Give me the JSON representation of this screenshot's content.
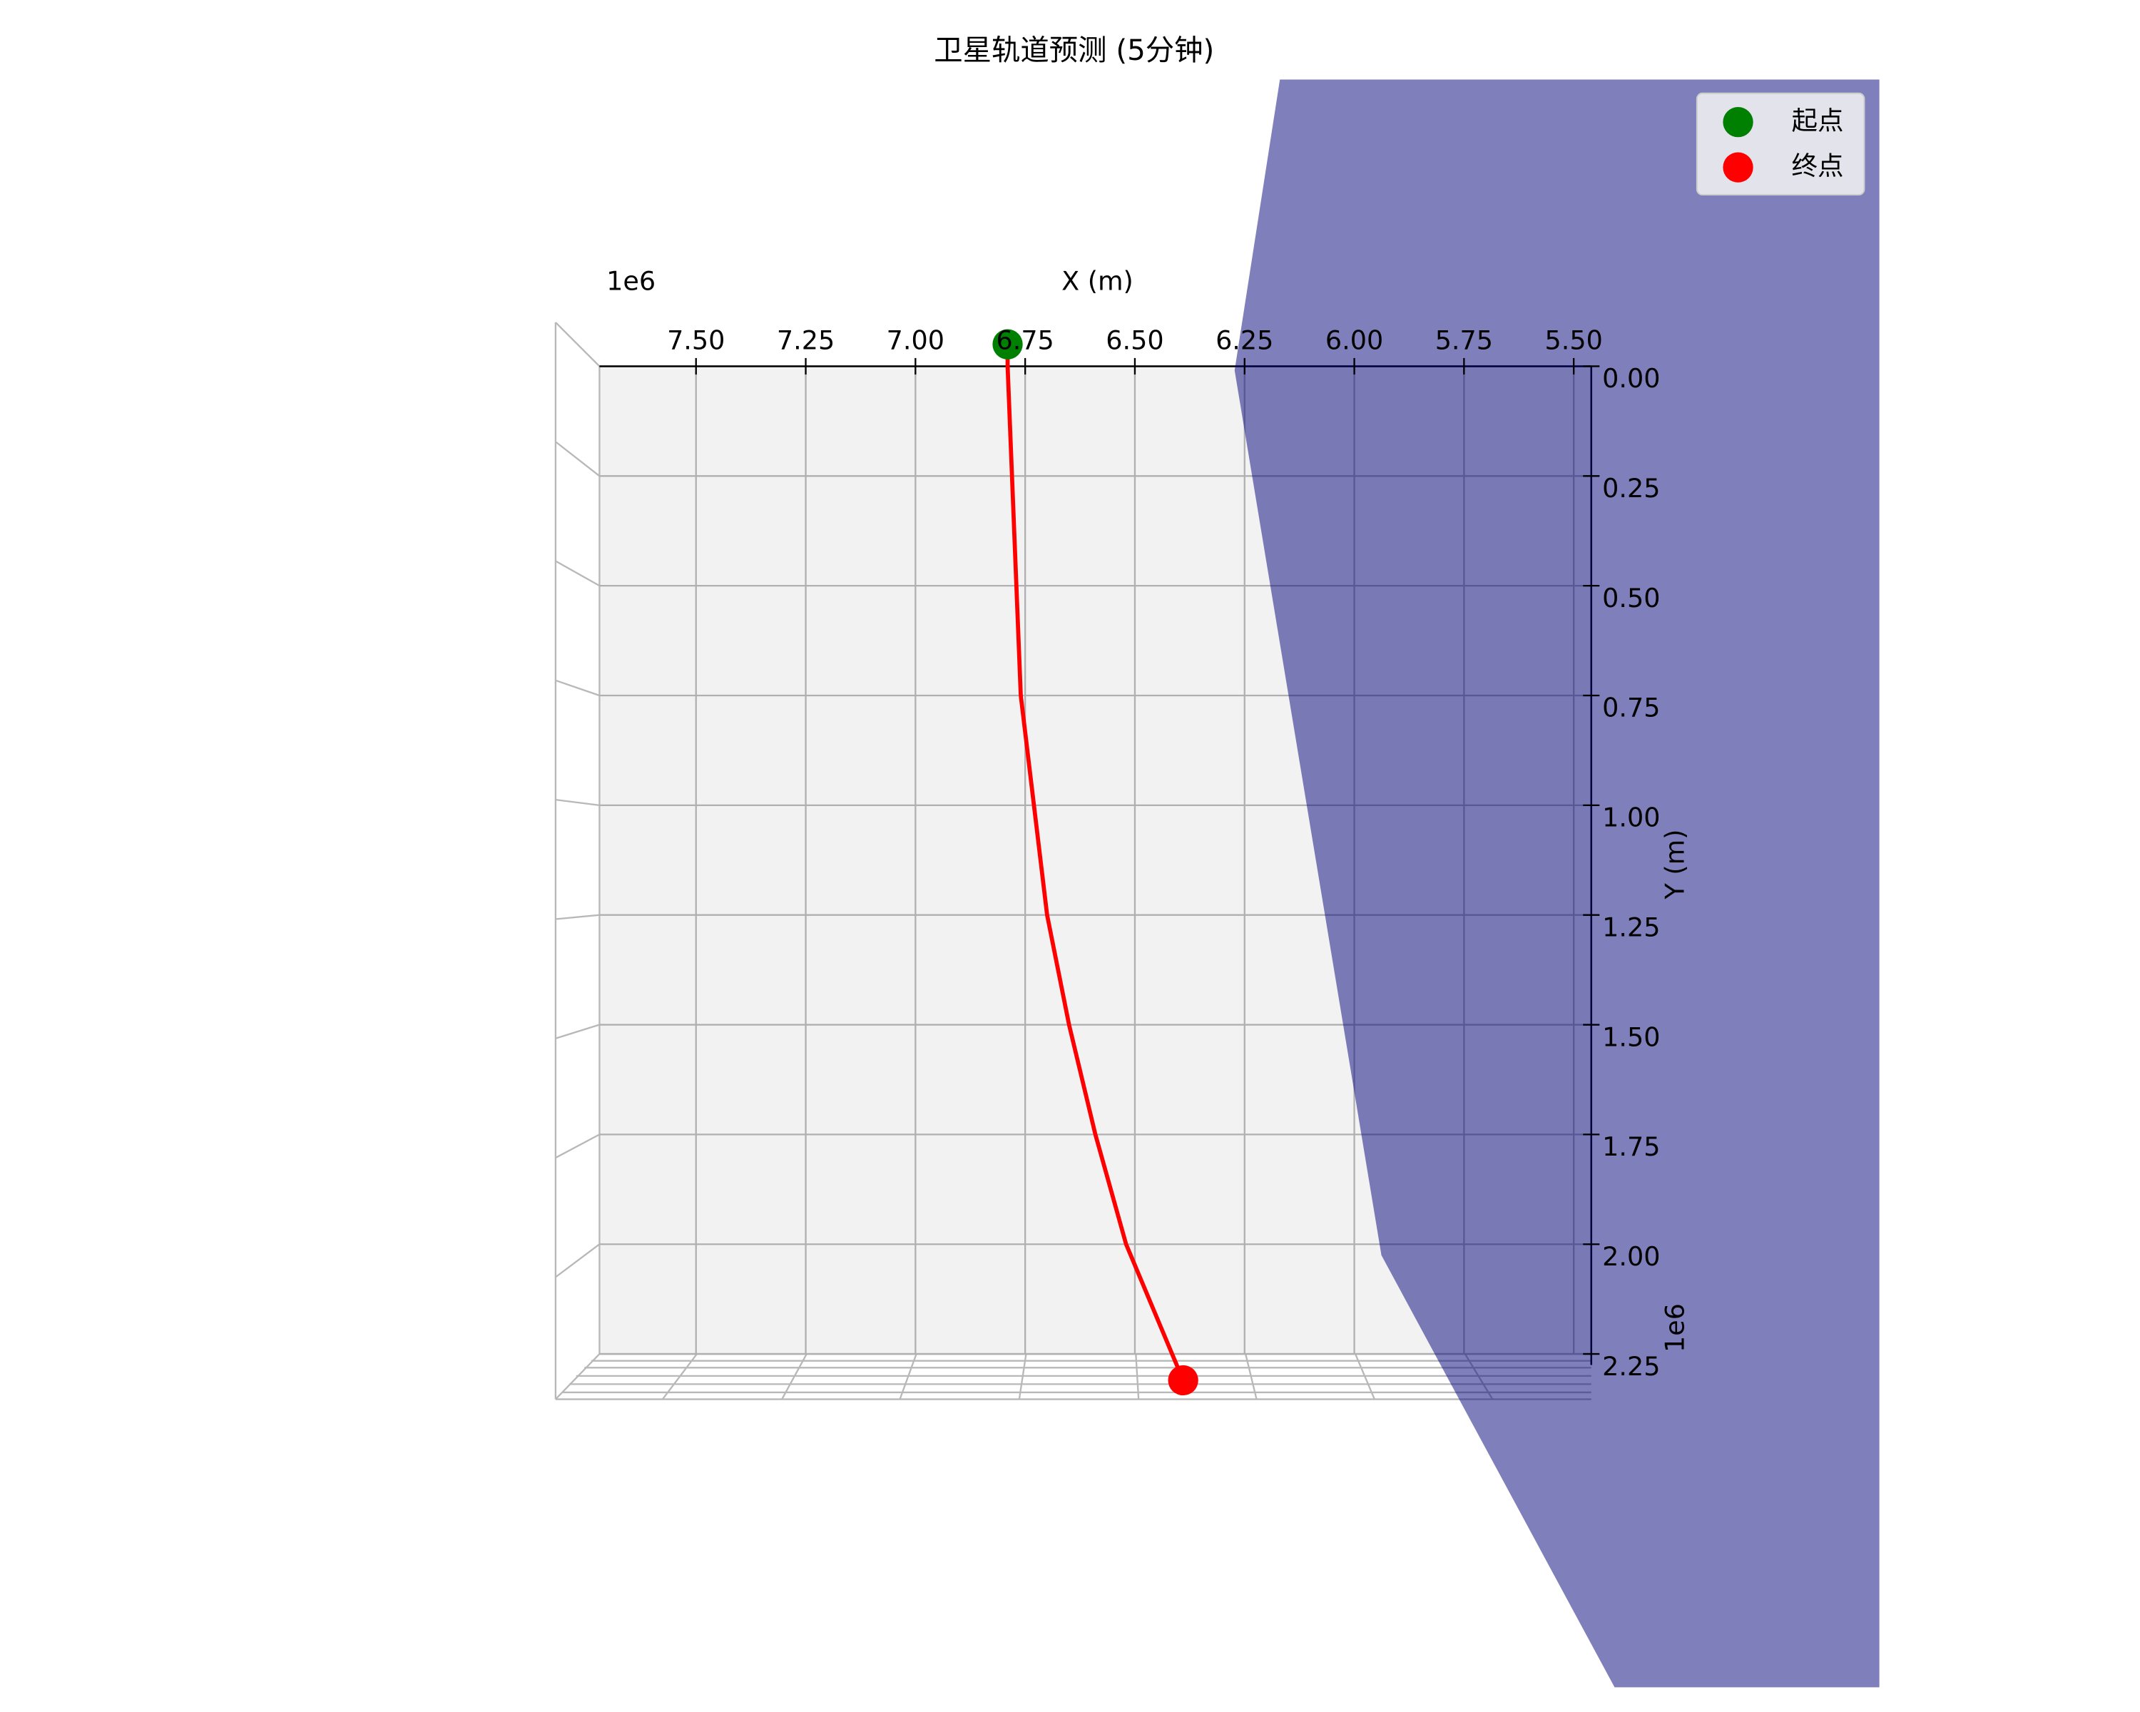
{
  "chart_data": {
    "type": "line",
    "title": "卫星轨道预测 (5分钟)",
    "xlabel": "X (m)",
    "ylabel": "Y (m)",
    "x_offset": "1e6",
    "y_offset": "1e6",
    "x": [
      6.79,
      6.79,
      6.78,
      6.77,
      6.76,
      6.73,
      6.7,
      6.65,
      6.59,
      6.52,
      6.39
    ],
    "series": [
      {
        "color": "#ff0000",
        "values": [
          -0.05,
          0,
          0.25,
          0.5,
          0.75,
          1.0,
          1.25,
          1.5,
          1.75,
          2.0,
          2.31
        ]
      }
    ],
    "points": [
      {
        "name": "起点",
        "color": "#008000",
        "x": 6.79,
        "y": -0.05
      },
      {
        "name": "终点",
        "color": "#ff0000",
        "x": 6.39,
        "y": 2.31
      }
    ],
    "xlim": [
      7.72,
      5.46
    ],
    "ylim": [
      0,
      2.25
    ],
    "xticks": [
      {
        "value": 7.5,
        "label": "7.50"
      },
      {
        "value": 7.25,
        "label": "7.25"
      },
      {
        "value": 7.0,
        "label": "7.00"
      },
      {
        "value": 6.75,
        "label": "6.75"
      },
      {
        "value": 6.5,
        "label": "6.50"
      },
      {
        "value": 6.25,
        "label": "6.25"
      },
      {
        "value": 6.0,
        "label": "6.00"
      },
      {
        "value": 5.75,
        "label": "5.75"
      },
      {
        "value": 5.5,
        "label": "5.50"
      }
    ],
    "yticks": [
      {
        "value": 0,
        "label": "0.00"
      },
      {
        "value": 0.25,
        "label": "0.25"
      },
      {
        "value": 0.5,
        "label": "0.50"
      },
      {
        "value": 0.75,
        "label": "0.75"
      },
      {
        "value": 1.0,
        "label": "1.00"
      },
      {
        "value": 1.25,
        "label": "1.25"
      },
      {
        "value": 1.5,
        "label": "1.50"
      },
      {
        "value": 1.75,
        "label": "1.75"
      },
      {
        "value": 2.0,
        "label": "2.00"
      },
      {
        "value": 2.25,
        "label": "2.25"
      }
    ],
    "grid": true,
    "legend": "upper right"
  }
}
